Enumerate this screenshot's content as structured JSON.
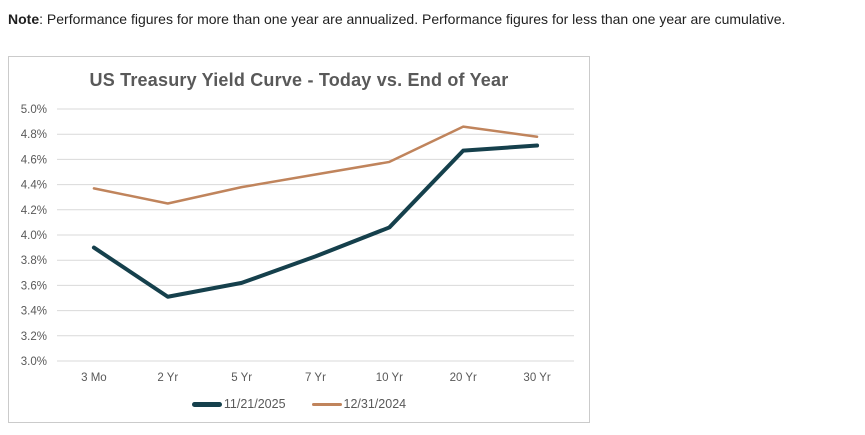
{
  "note": {
    "label": "Note",
    "text": ": Performance figures for more than one year are annualized. Performance figures for less than one year are cumulative."
  },
  "chart_data": {
    "type": "line",
    "title": "US Treasury Yield Curve - Today vs. End of Year",
    "categories": [
      "3 Mo",
      "2 Yr",
      "5 Yr",
      "7 Yr",
      "10 Yr",
      "20 Yr",
      "30 Yr"
    ],
    "xlabel": "",
    "ylabel": "",
    "unit": "%",
    "ylim": [
      3.0,
      5.0
    ],
    "ytick_values": [
      5.0,
      4.8,
      4.6,
      4.4,
      4.2,
      4.0,
      3.8,
      3.6,
      3.4,
      3.2,
      3.0
    ],
    "ytick_labels": [
      "5.0%",
      "4.8%",
      "4.6%",
      "4.4%",
      "4.2%",
      "4.0%",
      "3.8%",
      "3.6%",
      "3.4%",
      "3.2%",
      "3.0%"
    ],
    "grid": true,
    "grid_color": "#d9d9d9",
    "tick_color": "#595959",
    "title_color": "#595959",
    "legend_position": "bottom",
    "series": [
      {
        "name": "11/21/2025",
        "color": "#15404c",
        "values": [
          3.9,
          3.51,
          3.62,
          3.83,
          4.06,
          4.67,
          4.71
        ]
      },
      {
        "name": "12/31/2024",
        "color": "#c0845c",
        "values": [
          4.37,
          4.25,
          4.38,
          4.48,
          4.58,
          4.86,
          4.78
        ]
      }
    ]
  }
}
